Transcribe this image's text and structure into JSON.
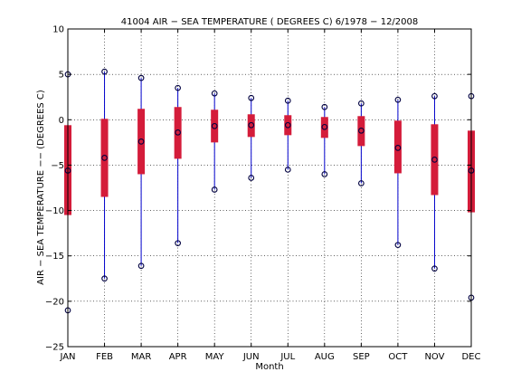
{
  "chart_data": {
    "type": "box",
    "title": "41004  AIR − SEA TEMPERATURE ( DEGREES C) 6/1978 − 12/2008",
    "xlabel": "Month",
    "ylabel": "AIR − SEA TEMPERATURE  −−  (DEGREES C)",
    "ylim": [
      -25,
      10
    ],
    "yticks": [
      -25,
      -20,
      -15,
      -10,
      -5,
      0,
      5,
      10
    ],
    "grid": true,
    "categories": [
      "JAN",
      "FEB",
      "MAR",
      "APR",
      "MAY",
      "JUN",
      "JUL",
      "AUG",
      "SEP",
      "OCT",
      "NOV",
      "DEC"
    ],
    "whisker_color": "#0000cc",
    "box_color": "#d41c3a",
    "marker_color": "#000040",
    "series": [
      {
        "min": -21.0,
        "q1": -10.5,
        "median": -5.6,
        "q3": -0.6,
        "max": 5.0
      },
      {
        "min": -17.5,
        "q1": -8.5,
        "median": -4.2,
        "q3": 0.1,
        "max": 5.3
      },
      {
        "min": -16.1,
        "q1": -6.0,
        "median": -2.4,
        "q3": 1.2,
        "max": 4.6
      },
      {
        "min": -13.6,
        "q1": -4.3,
        "median": -1.4,
        "q3": 1.4,
        "max": 3.5
      },
      {
        "min": -7.7,
        "q1": -2.5,
        "median": -0.7,
        "q3": 1.1,
        "max": 2.9
      },
      {
        "min": -6.4,
        "q1": -1.9,
        "median": -0.6,
        "q3": 0.6,
        "max": 2.4
      },
      {
        "min": -5.5,
        "q1": -1.7,
        "median": -0.6,
        "q3": 0.5,
        "max": 2.1
      },
      {
        "min": -6.0,
        "q1": -2.0,
        "median": -0.8,
        "q3": 0.3,
        "max": 1.4
      },
      {
        "min": -7.0,
        "q1": -2.9,
        "median": -1.2,
        "q3": 0.4,
        "max": 1.8
      },
      {
        "min": -13.8,
        "q1": -5.9,
        "median": -3.1,
        "q3": -0.1,
        "max": 2.2
      },
      {
        "min": -16.4,
        "q1": -8.3,
        "median": -4.4,
        "q3": -0.5,
        "max": 2.6
      },
      {
        "min": -19.6,
        "q1": -10.2,
        "median": -5.6,
        "q3": -1.2,
        "max": 2.6
      }
    ]
  }
}
